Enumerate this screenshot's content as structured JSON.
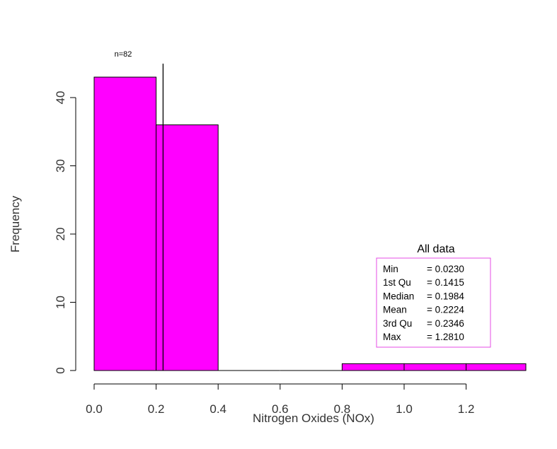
{
  "chart_data": {
    "type": "bar",
    "bins": [
      {
        "x0": 0.0,
        "x1": 0.2,
        "count": 43
      },
      {
        "x0": 0.2,
        "x1": 0.4,
        "count": 36
      },
      {
        "x0": 0.4,
        "x1": 0.6,
        "count": 0
      },
      {
        "x0": 0.6,
        "x1": 0.8,
        "count": 0
      },
      {
        "x0": 0.8,
        "x1": 1.0,
        "count": 1
      },
      {
        "x0": 1.0,
        "x1": 1.2,
        "count": 1
      },
      {
        "x0": 1.2,
        "x1": 1.4,
        "count": 1
      }
    ],
    "xlabel": "Nitrogen Oxides (NOx)",
    "ylabel": "Frequency",
    "xlim": [
      0,
      1.4
    ],
    "ylim": [
      0,
      45
    ],
    "xticks": [
      "0.0",
      "0.2",
      "0.4",
      "0.6",
      "0.8",
      "1.0",
      "1.2"
    ],
    "yticks": [
      "0",
      "10",
      "20",
      "30",
      "40"
    ],
    "bar_color": "#ff00ff",
    "mean_line_x": 0.2224,
    "annotation": "n=82",
    "grid": false,
    "stats_box": {
      "title": "All data",
      "border_color": "#e64ce6",
      "rows": [
        {
          "label": "Min",
          "value": "= 0.0230"
        },
        {
          "label": "1st Qu",
          "value": "= 0.1415"
        },
        {
          "label": "Median",
          "value": "= 0.1984"
        },
        {
          "label": "Mean",
          "value": "= 0.2224"
        },
        {
          "label": "3rd Qu",
          "value": "= 0.2346"
        },
        {
          "label": "Max",
          "value": "= 1.2810"
        }
      ]
    }
  }
}
